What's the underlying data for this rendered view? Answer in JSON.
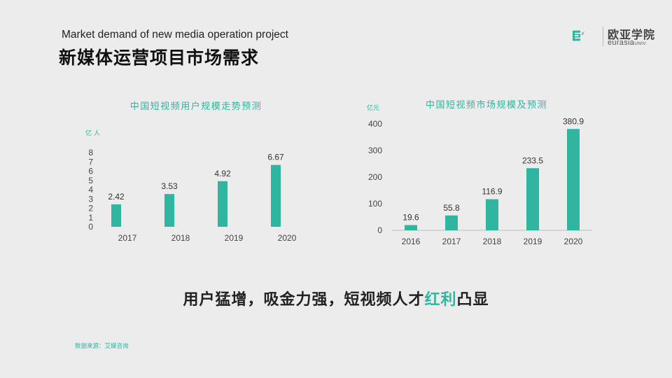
{
  "header": {
    "subtitle_en": "Market demand of new media operation project",
    "title_cn": "新媒体运营项目市场需求"
  },
  "logo": {
    "mark_letter": "E",
    "mark_quote": "//",
    "name_cn": "欧亚学院",
    "name_en": "eurasia",
    "name_en_suffix": "UNIV."
  },
  "colors": {
    "accent": "#2fb5a0",
    "background": "#ececec"
  },
  "chart_data": [
    {
      "type": "bar",
      "title": "中国短视频用户规模走势预测",
      "ylabel": "亿 人",
      "categories": [
        "2017",
        "2018",
        "2019",
        "2020"
      ],
      "values": [
        2.42,
        3.53,
        4.92,
        6.67
      ],
      "value_labels": [
        "2.42",
        "3.53",
        "4.92",
        "6.67"
      ],
      "yticks": [
        0,
        1,
        2,
        3,
        4,
        5,
        6,
        7,
        8
      ],
      "ylim": [
        0,
        8
      ],
      "grid": false,
      "legend": "none"
    },
    {
      "type": "bar",
      "title": "中国短视频市场规模及预测",
      "ylabel": "亿元",
      "categories": [
        "2016",
        "2017",
        "2018",
        "2019",
        "2020"
      ],
      "values": [
        19.6,
        55.8,
        116.9,
        233.5,
        380.9
      ],
      "value_labels": [
        "19.6",
        "55.8",
        "116.9",
        "233.5",
        "380.9"
      ],
      "yticks": [
        0,
        100,
        200,
        300,
        400
      ],
      "ylim": [
        0,
        400
      ],
      "grid": false,
      "legend": "none"
    }
  ],
  "headline": {
    "main": "用户猛增，吸金力强，短视频人才",
    "highlight": "红利",
    "end": "凸显"
  },
  "source": "数据来源：艾媒咨询"
}
